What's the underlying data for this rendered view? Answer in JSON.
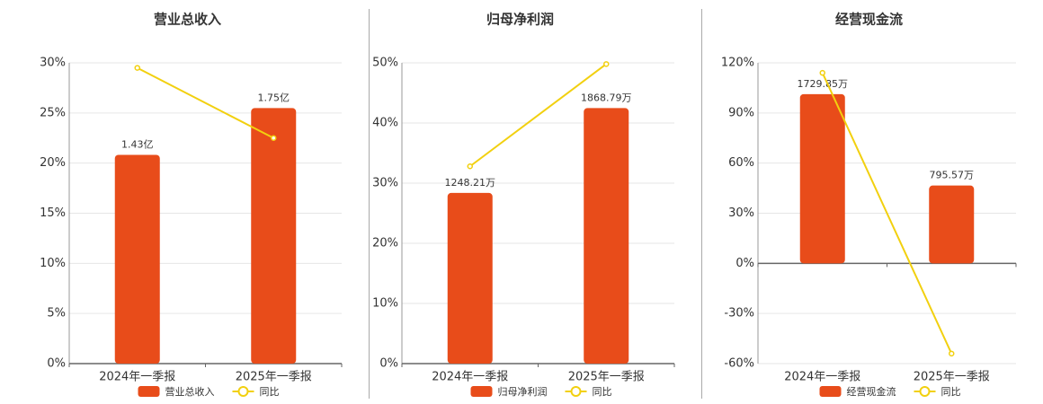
{
  "chart_data": [
    {
      "type": "combo",
      "title": "营业总收入",
      "categories": [
        "2024年一季报",
        "2025年一季报"
      ],
      "ylim": [
        0,
        30
      ],
      "yticks": [
        {
          "value": 0,
          "label": "0%"
        },
        {
          "value": 5,
          "label": "5%"
        },
        {
          "value": 10,
          "label": "10%"
        },
        {
          "value": 15,
          "label": "15%"
        },
        {
          "value": 20,
          "label": "20%"
        },
        {
          "value": 25,
          "label": "25%"
        },
        {
          "value": 30,
          "label": "30%"
        }
      ],
      "y2lim": [
        0,
        2.06
      ],
      "grid": true,
      "series": [
        {
          "name": "营业总收入",
          "type": "bar",
          "axis": "y2",
          "color": "#e84c1a",
          "values": [
            1.43,
            1.75
          ],
          "value_labels": [
            "1.43亿",
            "1.75亿"
          ]
        },
        {
          "name": "同比",
          "type": "line",
          "color": "#f2d00f",
          "values": [
            29.5,
            22.5
          ]
        }
      ]
    },
    {
      "type": "combo",
      "title": "归母净利润",
      "categories": [
        "2024年一季报",
        "2025年一季报"
      ],
      "ylim": [
        0,
        50
      ],
      "yticks": [
        {
          "value": 0,
          "label": "0%"
        },
        {
          "value": 10,
          "label": "10%"
        },
        {
          "value": 20,
          "label": "20%"
        },
        {
          "value": 30,
          "label": "30%"
        },
        {
          "value": 40,
          "label": "40%"
        },
        {
          "value": 50,
          "label": "50%"
        }
      ],
      "y2lim": [
        0,
        2200
      ],
      "grid": true,
      "series": [
        {
          "name": "归母净利润",
          "type": "bar",
          "axis": "y2",
          "color": "#e84c1a",
          "values": [
            1248.21,
            1868.79
          ],
          "value_labels": [
            "1248.21万",
            "1868.79万"
          ]
        },
        {
          "name": "同比",
          "type": "line",
          "color": "#f2d00f",
          "values": [
            32.8,
            49.8
          ]
        }
      ]
    },
    {
      "type": "combo",
      "title": "经营现金流",
      "categories": [
        "2024年一季报",
        "2025年一季报"
      ],
      "ylim": [
        -60,
        120
      ],
      "yticks": [
        {
          "value": -60,
          "label": "-60%"
        },
        {
          "value": -30,
          "label": "-30%"
        },
        {
          "value": 0,
          "label": "0%"
        },
        {
          "value": 30,
          "label": "30%"
        },
        {
          "value": 60,
          "label": "60%"
        },
        {
          "value": 90,
          "label": "90%"
        },
        {
          "value": 120,
          "label": "120%"
        }
      ],
      "y2lim": [
        -1025,
        2050
      ],
      "grid": true,
      "series": [
        {
          "name": "经营现金流",
          "type": "bar",
          "axis": "y2",
          "color": "#e84c1a",
          "values": [
            1729.85,
            795.57
          ],
          "value_labels": [
            "1729.85万",
            "795.57万"
          ]
        },
        {
          "name": "同比",
          "type": "line",
          "color": "#f2d00f",
          "values": [
            114,
            -54
          ]
        }
      ]
    }
  ]
}
